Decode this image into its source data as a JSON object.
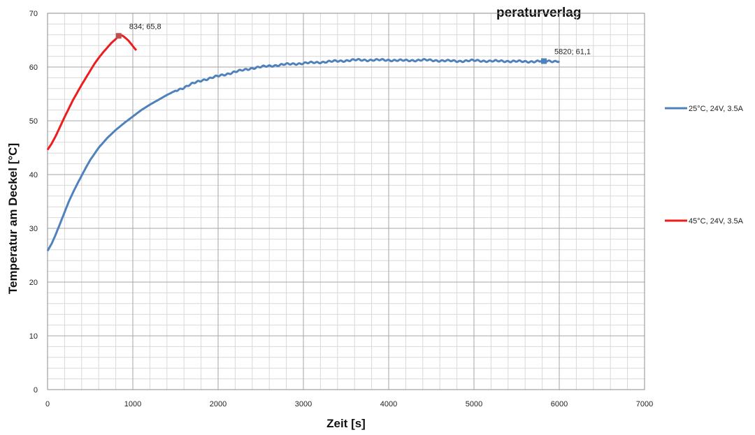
{
  "chart_data": {
    "type": "line",
    "title": "",
    "title_visible_fragment": "peraturverlag",
    "xlabel": "Zeit [s]",
    "ylabel": "Temperatur am Deckel [°C]",
    "xlim": [
      0,
      7000
    ],
    "ylim": [
      0,
      70
    ],
    "x_ticks": [
      0,
      1000,
      2000,
      3000,
      4000,
      5000,
      6000,
      7000
    ],
    "y_ticks": [
      0,
      10,
      20,
      30,
      40,
      50,
      60,
      70
    ],
    "x_tick_labels": [
      "0",
      "1000",
      "2000",
      "3000",
      "4000",
      "5000",
      "6000",
      "7000"
    ],
    "y_tick_labels": [
      "0",
      "10",
      "20",
      "30",
      "40",
      "50",
      "60",
      "70"
    ],
    "grid": true,
    "legend_placement": "right",
    "series": [
      {
        "name": "25°C, 24V, 3.5A",
        "color": "#4f81bd",
        "x": [
          0,
          50,
          100,
          150,
          200,
          250,
          300,
          350,
          400,
          450,
          500,
          600,
          700,
          800,
          900,
          1000,
          1100,
          1200,
          1300,
          1400,
          1500,
          1600,
          1700,
          1800,
          1900,
          2000,
          2200,
          2400,
          2600,
          2800,
          3000,
          3200,
          3400,
          3600,
          3800,
          4000,
          4200,
          4400,
          4600,
          4800,
          5000,
          5200,
          5400,
          5600,
          5820,
          6000
        ],
        "y": [
          25.8,
          27.2,
          29.0,
          31.0,
          33.0,
          35.0,
          36.7,
          38.3,
          39.8,
          41.3,
          42.7,
          45.0,
          46.8,
          48.3,
          49.6,
          50.8,
          52.0,
          53.0,
          53.9,
          54.8,
          55.6,
          56.2,
          56.9,
          57.5,
          57.9,
          58.3,
          59.1,
          59.8,
          60.2,
          60.5,
          60.7,
          60.9,
          61.1,
          61.3,
          61.3,
          61.3,
          61.2,
          61.3,
          61.2,
          61.1,
          61.2,
          61.1,
          61.1,
          61.0,
          61.1,
          61.1
        ],
        "marker": {
          "x": 5820,
          "y": 61.1,
          "label": "5820; 61,1"
        }
      },
      {
        "name": "45°C, 24V, 3.5A",
        "color": "#ee1c1c",
        "x": [
          0,
          50,
          100,
          150,
          200,
          250,
          300,
          350,
          400,
          450,
          500,
          550,
          600,
          650,
          700,
          750,
          800,
          834,
          870,
          900,
          950,
          1000,
          1040
        ],
        "y": [
          44.6,
          45.8,
          47.3,
          49.0,
          50.7,
          52.3,
          53.9,
          55.3,
          56.7,
          58.0,
          59.3,
          60.6,
          61.7,
          62.7,
          63.6,
          64.5,
          65.2,
          65.8,
          65.9,
          65.6,
          64.9,
          63.9,
          63.1
        ],
        "marker": {
          "x": 834,
          "y": 65.8,
          "label": "834; 65,8"
        }
      }
    ]
  }
}
